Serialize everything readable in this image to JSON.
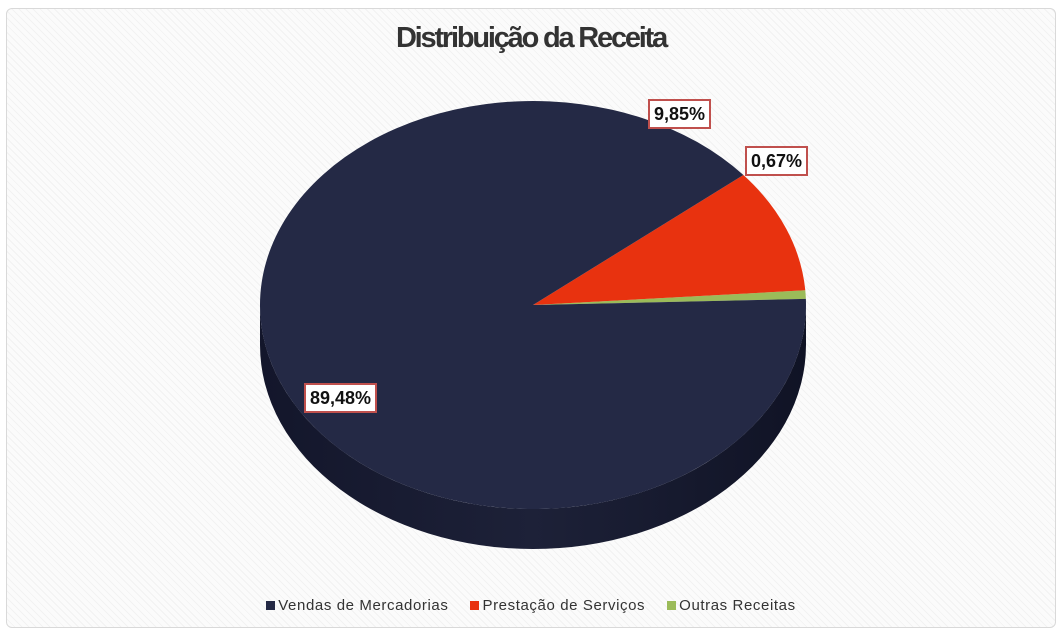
{
  "chart_data": {
    "type": "pie",
    "title": "Distribuição da Receita",
    "slices": [
      {
        "name": "Vendas de Mercadorias",
        "value": 89.48,
        "label": "89,48%",
        "color": "#242945"
      },
      {
        "name": "Prestação de Serviços",
        "value": 9.85,
        "label": "9,85%",
        "color": "#e8320f"
      },
      {
        "name": "Outras Receitas",
        "value": 0.67,
        "label": "0,67%",
        "color": "#9bbb59"
      }
    ],
    "legend_position": "bottom",
    "style": "3d"
  }
}
